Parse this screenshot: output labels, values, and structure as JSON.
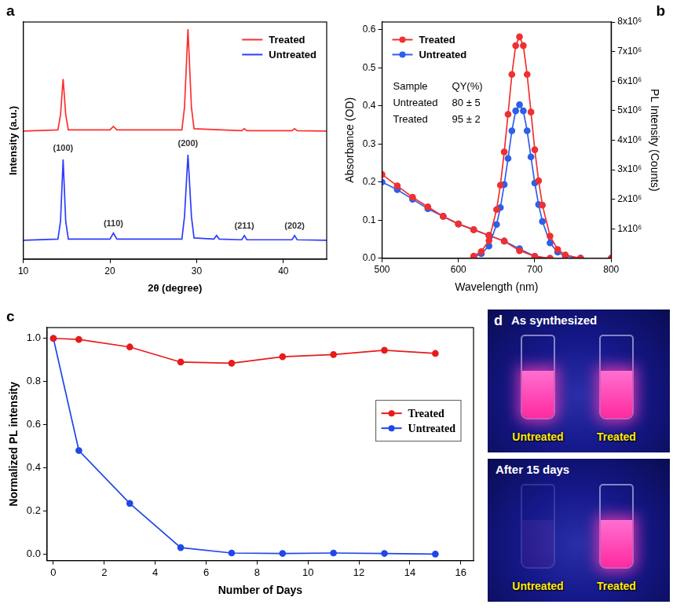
{
  "chart_data": [
    {
      "panel_label": "a",
      "type": "line",
      "x_label": "2θ (degree)",
      "y_label": "Intensity (a.u.)",
      "xlim": [
        10,
        45
      ],
      "xticks": [
        10,
        20,
        30,
        40
      ],
      "ylim": [
        0,
        10
      ],
      "tick_labels": "x",
      "grid": false,
      "legend": "upper right",
      "series": [
        {
          "name": "Treated",
          "color": "#ff2d2d",
          "marker": "none",
          "line_style": "solid",
          "x": [
            10,
            14.0,
            14.3,
            14.6,
            14.9,
            15.2,
            20.0,
            20.4,
            20.8,
            28.3,
            28.6,
            29.0,
            29.4,
            29.7,
            35.2,
            35.5,
            35.8,
            41.0,
            41.3,
            41.6,
            45
          ],
          "values": [
            5.4,
            5.45,
            6.1,
            7.6,
            6.1,
            5.45,
            5.45,
            5.6,
            5.45,
            5.45,
            6.4,
            9.7,
            6.4,
            5.5,
            5.42,
            5.5,
            5.42,
            5.42,
            5.5,
            5.42,
            5.4
          ]
        },
        {
          "name": "Untreated",
          "color": "#2d3cff",
          "marker": "none",
          "line_style": "solid",
          "x": [
            10,
            14.0,
            14.3,
            14.6,
            14.9,
            15.2,
            20.0,
            20.4,
            20.8,
            28.3,
            28.6,
            29.0,
            29.4,
            29.7,
            32.0,
            32.3,
            32.6,
            35.2,
            35.5,
            35.8,
            41.0,
            41.3,
            41.6,
            45
          ],
          "values": [
            0.8,
            0.85,
            1.6,
            4.2,
            1.6,
            0.85,
            0.85,
            1.1,
            0.85,
            0.85,
            1.8,
            4.4,
            1.8,
            0.9,
            0.85,
            1.0,
            0.85,
            0.82,
            1.0,
            0.82,
            0.82,
            1.0,
            0.82,
            0.8
          ]
        }
      ],
      "annotations": [
        {
          "text": "(100)",
          "x": 14.6,
          "y": 4.5
        },
        {
          "text": "(110)",
          "x": 20.4,
          "y": 1.3
        },
        {
          "text": "(200)",
          "x": 29.0,
          "y": 4.7
        },
        {
          "text": "(211)",
          "x": 35.5,
          "y": 1.2
        },
        {
          "text": "(202)",
          "x": 41.3,
          "y": 1.2
        }
      ]
    },
    {
      "panel_label": "b",
      "type": "line",
      "x_label": "Wavelength (nm)",
      "y_label": "Absorbance (OD)",
      "y2_label": "PL Intensity (Counts)",
      "xlim": [
        500,
        800
      ],
      "xticks": [
        500,
        600,
        700,
        800
      ],
      "ylim": [
        0,
        0.62
      ],
      "yticks": [
        {
          "value": 0,
          "label": "0.0"
        },
        {
          "value": 0.1,
          "label": "0.1"
        },
        {
          "value": 0.2,
          "label": "0.2"
        },
        {
          "value": 0.3,
          "label": "0.3"
        },
        {
          "value": 0.4,
          "label": "0.4"
        },
        {
          "value": 0.5,
          "label": "0.5"
        },
        {
          "value": 0.6,
          "label": "0.6"
        }
      ],
      "y2lim": [
        0,
        8000000
      ],
      "y2ticks": [
        {
          "value": 1000000,
          "label": "1x10⁶"
        },
        {
          "value": 2000000,
          "label": "2x10⁶"
        },
        {
          "value": 3000000,
          "label": "3x10⁶"
        },
        {
          "value": 4000000,
          "label": "4x10⁶"
        },
        {
          "value": 5000000,
          "label": "5x10⁶"
        },
        {
          "value": 6000000,
          "label": "6x10⁶"
        },
        {
          "value": 7000000,
          "label": "7x10⁶"
        },
        {
          "value": 8000000,
          "label": "8x10⁶"
        }
      ],
      "grid": false,
      "legend": "upper left",
      "series": [
        {
          "name": "Treated",
          "color": "#f03030",
          "marker": "circle",
          "line_style": "solid",
          "axis": "y2",
          "x": [
            620,
            630,
            640,
            650,
            655,
            660,
            665,
            670,
            675,
            680,
            685,
            690,
            695,
            700,
            705,
            710,
            720,
            730,
            740,
            760
          ],
          "values": [
            75000,
            225000,
            600000,
            1650000,
            2475000,
            3600000,
            4875000,
            6225000,
            7200000,
            7500000,
            7200000,
            6225000,
            4950000,
            3675000,
            2625000,
            1800000,
            750000,
            300000,
            112500,
            0
          ]
        },
        {
          "name": "Untreated",
          "color": "#2f5fe8",
          "marker": "circle",
          "line_style": "solid",
          "axis": "y2",
          "x": [
            620,
            630,
            640,
            650,
            655,
            660,
            665,
            670,
            675,
            680,
            685,
            690,
            695,
            700,
            705,
            710,
            720,
            730,
            740,
            760
          ],
          "values": [
            52000,
            156000,
            416000,
            1144000,
            1716000,
            2496000,
            3380000,
            4316000,
            4992000,
            5200000,
            4992000,
            4316000,
            3432000,
            2548000,
            1820000,
            1248000,
            520000,
            208000,
            78000,
            0
          ]
        },
        {
          "name": "Treated",
          "color": "#f03030",
          "marker": "circle",
          "line_style": "solid",
          "x": [
            500,
            520,
            540,
            560,
            580,
            600,
            620,
            640,
            660,
            680,
            700,
            720,
            760,
            800
          ],
          "values": [
            0.22,
            0.19,
            0.16,
            0.135,
            0.11,
            0.09,
            0.075,
            0.06,
            0.045,
            0.02,
            0.005,
            0,
            0,
            0
          ]
        },
        {
          "name": "Untreated",
          "color": "#2f5fe8",
          "marker": "circle",
          "line_style": "solid",
          "x": [
            500,
            520,
            540,
            560,
            580,
            600,
            620,
            640,
            660,
            680,
            700,
            720,
            760,
            800
          ],
          "values": [
            0.2,
            0.18,
            0.155,
            0.13,
            0.11,
            0.09,
            0.075,
            0.06,
            0.045,
            0.025,
            0.005,
            0,
            0,
            0
          ]
        }
      ],
      "table": {
        "header": [
          "Sample",
          "QY(%)"
        ],
        "rows": [
          [
            "Untreated",
            "80 ± 5"
          ],
          [
            "Treated",
            "95 ± 2"
          ]
        ]
      }
    },
    {
      "panel_label": "c",
      "type": "line",
      "x_label": "Number of Days",
      "y_label": "Normalized PL intensity",
      "xlim": [
        -0.25,
        16.5
      ],
      "xticks": [
        0,
        2,
        4,
        6,
        8,
        10,
        12,
        14,
        16
      ],
      "ylim": [
        -0.03,
        1.05
      ],
      "yticks": [
        {
          "value": 0,
          "label": "0.0"
        },
        {
          "value": 0.2,
          "label": "0.2"
        },
        {
          "value": 0.4,
          "label": "0.4"
        },
        {
          "value": 0.6,
          "label": "0.6"
        },
        {
          "value": 0.8,
          "label": "0.8"
        },
        {
          "value": 1,
          "label": "1.0"
        }
      ],
      "grid": false,
      "legend": "right",
      "series": [
        {
          "name": "Treated",
          "color": "#e81b1b",
          "marker": "circle",
          "line_style": "solid",
          "x": [
            0,
            1,
            3,
            5,
            7,
            9,
            11,
            13,
            15
          ],
          "values": [
            1.0,
            0.995,
            0.96,
            0.89,
            0.885,
            0.915,
            0.925,
            0.945,
            0.93
          ]
        },
        {
          "name": "Untreated",
          "color": "#1f48e8",
          "marker": "circle",
          "line_style": "solid",
          "x": [
            0,
            1,
            3,
            5,
            7,
            9,
            11,
            13,
            15
          ],
          "values": [
            1.0,
            0.48,
            0.235,
            0.03,
            0.005,
            0.003,
            0.005,
            0.003,
            0.0
          ]
        }
      ]
    }
  ],
  "photo": {
    "panel_label": "d",
    "frames": [
      {
        "title": "As synthesized",
        "labels": [
          "Untreated",
          "Treated"
        ]
      },
      {
        "title": "After 15 days",
        "labels": [
          "Untreated",
          "Treated"
        ]
      }
    ]
  }
}
